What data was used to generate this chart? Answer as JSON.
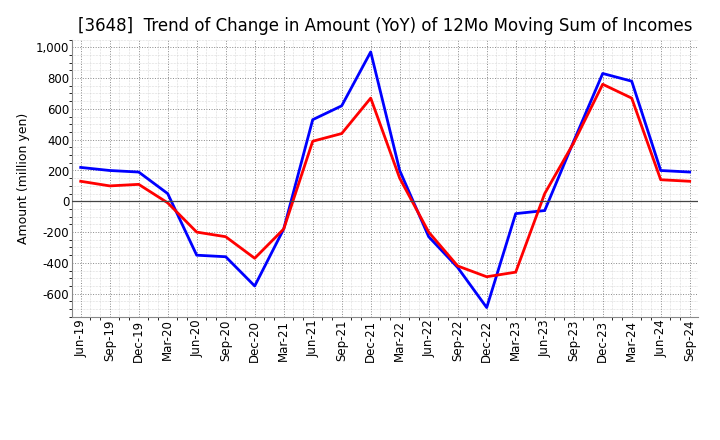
{
  "title": "[3648]  Trend of Change in Amount (YoY) of 12Mo Moving Sum of Incomes",
  "ylabel": "Amount (million yen)",
  "x_labels": [
    "Jun-19",
    "Sep-19",
    "Dec-19",
    "Mar-20",
    "Jun-20",
    "Sep-20",
    "Dec-20",
    "Mar-21",
    "Jun-21",
    "Sep-21",
    "Dec-21",
    "Mar-22",
    "Jun-22",
    "Sep-22",
    "Dec-22",
    "Mar-23",
    "Jun-23",
    "Sep-23",
    "Dec-23",
    "Mar-24",
    "Jun-24",
    "Sep-24"
  ],
  "ordinary_income": [
    220,
    200,
    190,
    50,
    -350,
    -360,
    -550,
    -180,
    530,
    620,
    970,
    200,
    -230,
    -430,
    -690,
    -80,
    -60,
    390,
    830,
    780,
    200,
    190
  ],
  "net_income": [
    130,
    100,
    110,
    -10,
    -200,
    -230,
    -370,
    -180,
    390,
    440,
    670,
    150,
    -200,
    -420,
    -490,
    -460,
    50,
    380,
    760,
    670,
    140,
    130
  ],
  "ordinary_color": "#0000ff",
  "net_color": "#ff0000",
  "line_width": 2.0,
  "ylim": [
    -750,
    1050
  ],
  "yticks": [
    -600,
    -400,
    -200,
    0,
    200,
    400,
    600,
    800,
    1000
  ],
  "background_color": "#ffffff",
  "grid_major_color": "#888888",
  "grid_minor_color": "#bbbbbb",
  "title_fontsize": 12,
  "label_fontsize": 9,
  "tick_fontsize": 8.5
}
